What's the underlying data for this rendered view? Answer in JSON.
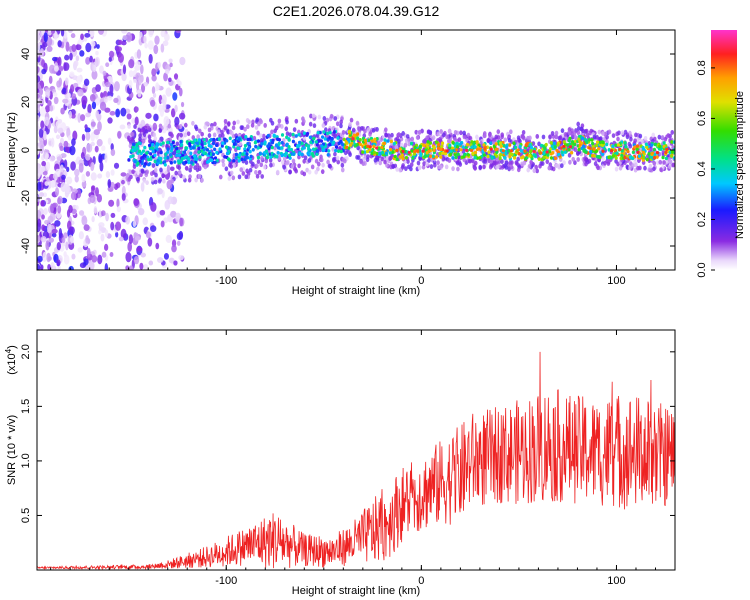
{
  "figure": {
    "title": "C2E1.2026.078.04.39.G12"
  },
  "chart_data": [
    {
      "type": "heatmap",
      "name": "spectrogram",
      "title": "C2E1.2026.078.04.39.G12",
      "xlabel": "Height of straight line (km)",
      "ylabel": "Frequency (Hz)",
      "xlim": [
        -197,
        130
      ],
      "ylim": [
        -50,
        50
      ],
      "x_ticks": [
        -100,
        0,
        100
      ],
      "x_tick_labels": [
        "-100",
        "0",
        "100"
      ],
      "y_ticks": [
        -40,
        -20,
        0,
        20,
        40
      ],
      "y_tick_labels": [
        "-40",
        "-20",
        "0",
        "20",
        "40"
      ],
      "ridge_center_hz": {
        "x": [
          -140,
          -120,
          -100,
          -80,
          -60,
          -50,
          -40,
          -35,
          -30,
          -20,
          -10,
          0,
          20,
          40,
          60,
          70,
          80,
          90,
          100,
          115,
          130
        ],
        "y": [
          -2,
          -1,
          0,
          1,
          2,
          3,
          3,
          5,
          2,
          1,
          -1,
          0,
          0,
          0,
          -1,
          0,
          3,
          0,
          0,
          -1,
          0
        ]
      },
      "colorbar": {
        "label": "Normalized spectral amplitude",
        "range": [
          0,
          0.95
        ],
        "ticks": [
          0.0,
          0.2,
          0.4,
          0.6,
          0.8
        ],
        "tick_labels": [
          "0.0",
          "0.2",
          "0.4",
          "0.6",
          "0.8"
        ]
      }
    },
    {
      "type": "line",
      "name": "snr",
      "xlabel": "Height of straight line (km)",
      "ylabel": "SNR (10 * v/v)",
      "y_scale_label": "(x10",
      "y_scale_exponent": "4",
      "xlim": [
        -197,
        130
      ],
      "ylim": [
        0,
        2.2
      ],
      "x_ticks": [
        -100,
        0,
        100
      ],
      "x_tick_labels": [
        "-100",
        "0",
        "100"
      ],
      "y_ticks": [
        0.5,
        1.0,
        1.5,
        2.0
      ],
      "y_tick_labels": [
        "0.5",
        "1.0",
        "1.5",
        "2.0"
      ],
      "color": "#ee2222",
      "envelope": {
        "x": [
          -197,
          -140,
          -130,
          -110,
          -90,
          -75,
          -60,
          -45,
          -35,
          -25,
          -18,
          -10,
          0,
          10,
          20,
          25,
          40,
          55,
          65,
          75,
          90,
          105,
          120,
          130
        ],
        "mean": [
          0.02,
          0.03,
          0.05,
          0.12,
          0.22,
          0.28,
          0.18,
          0.17,
          0.25,
          0.35,
          0.42,
          0.6,
          0.7,
          0.8,
          0.88,
          1.0,
          1.05,
          1.1,
          1.15,
          1.12,
          1.08,
          1.1,
          1.05,
          1.05
        ],
        "spread": [
          0.01,
          0.02,
          0.04,
          0.1,
          0.18,
          0.28,
          0.15,
          0.15,
          0.2,
          0.3,
          0.35,
          0.35,
          0.35,
          0.4,
          0.45,
          0.45,
          0.45,
          0.5,
          0.55,
          0.5,
          0.5,
          0.55,
          0.5,
          0.45
        ]
      }
    }
  ]
}
